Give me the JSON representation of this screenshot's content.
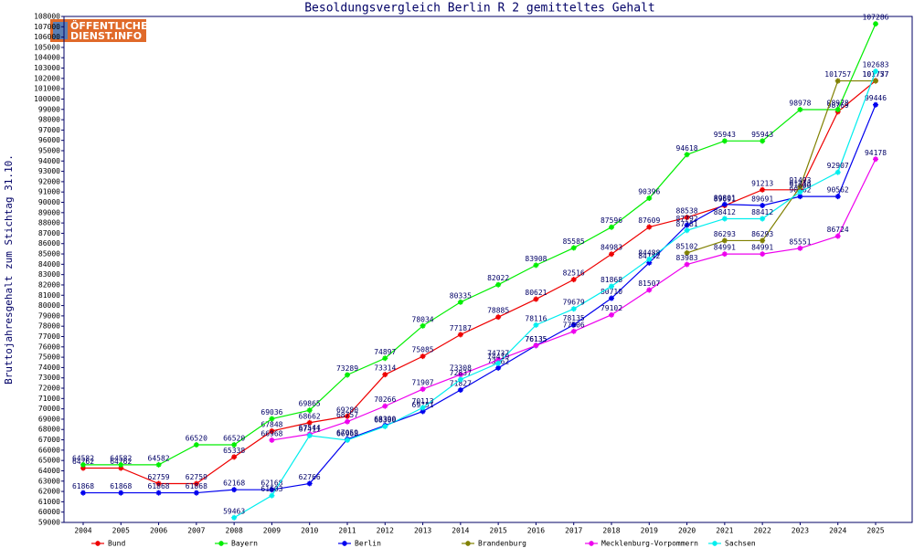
{
  "logo": [
    "ÖFFENTLICHER",
    "DIENST.INFO"
  ],
  "chart_data": {
    "type": "line",
    "title": "Besoldungsvergleich Berlin R 2 gemitteltes Gehalt",
    "y_label": "Bruttojahresgehalt zum Stichtag 31.10.",
    "categories": [
      "2004",
      "2005",
      "2006",
      "2007",
      "2008",
      "2009",
      "2010",
      "2011",
      "2012",
      "2013",
      "2014",
      "2015",
      "2016",
      "2017",
      "2018",
      "2019",
      "2020",
      "2021",
      "2022",
      "2023",
      "2024",
      "2025"
    ],
    "ylim": [
      59000,
      108000
    ],
    "yticks": [
      59000,
      60000,
      61000,
      62000,
      63000,
      64000,
      65000,
      66000,
      67000,
      68000,
      69000,
      70000,
      71000,
      72000,
      73000,
      74000,
      75000,
      76000,
      77000,
      78000,
      79000,
      80000,
      81000,
      82000,
      83000,
      84000,
      85000,
      86000,
      87000,
      88000,
      89000,
      90000,
      91000,
      92000,
      93000,
      94000,
      95000,
      96000,
      97000,
      98000,
      99000,
      100000,
      101000,
      102000,
      103000,
      104000,
      105000,
      106000,
      107000,
      108000
    ],
    "grid": false,
    "legend": "bottom",
    "series": [
      {
        "name": "Bund",
        "color": "#ee0000",
        "values": [
          64262,
          64262,
          62759,
          62759,
          65338,
          67848,
          68662,
          69280,
          73314,
          75085,
          77187,
          78885,
          80621,
          82516,
          84983,
          87609,
          88538,
          89691,
          91213,
          91213,
          98769,
          101777
        ]
      },
      {
        "name": "Bayern",
        "color": "#00ee00",
        "values": [
          64582,
          64582,
          64582,
          66520,
          66520,
          69036,
          69865,
          73289,
          74897,
          78034,
          80335,
          82022,
          83908,
          85585,
          87596,
          90396,
          94618,
          95943,
          95943,
          98978,
          98978,
          107286
        ]
      },
      {
        "name": "Berlin",
        "color": "#0000ee",
        "values": [
          61868,
          61868,
          61868,
          61868,
          62168,
          62168,
          62766,
          67059,
          68390,
          69751,
          71827,
          73962,
          76135,
          78135,
          80710,
          84142,
          87792,
          89801,
          89691,
          90562,
          90562,
          99446
        ]
      },
      {
        "name": "Brandenburg",
        "color": "#808000",
        "values": [
          null,
          null,
          null,
          null,
          null,
          null,
          null,
          null,
          null,
          null,
          null,
          null,
          null,
          null,
          null,
          null,
          85102,
          86293,
          86293,
          91493,
          101757,
          101757
        ]
      },
      {
        "name": "Mecklenburg-Vorpommern",
        "color": "#ee00ee",
        "values": [
          null,
          null,
          null,
          null,
          null,
          66968,
          67544,
          68757,
          70266,
          71907,
          73308,
          74737,
          76135,
          77506,
          79102,
          81507,
          83983,
          84991,
          84991,
          85551,
          86724,
          94178
        ]
      },
      {
        "name": "Sachsen",
        "color": "#00eeee",
        "values": [
          null,
          null,
          null,
          null,
          59463,
          61603,
          67411,
          66968,
          68300,
          70113,
          72837,
          74419,
          78116,
          79679,
          81868,
          84488,
          87281,
          88412,
          88412,
          91000,
          92907,
          102683
        ]
      }
    ]
  }
}
